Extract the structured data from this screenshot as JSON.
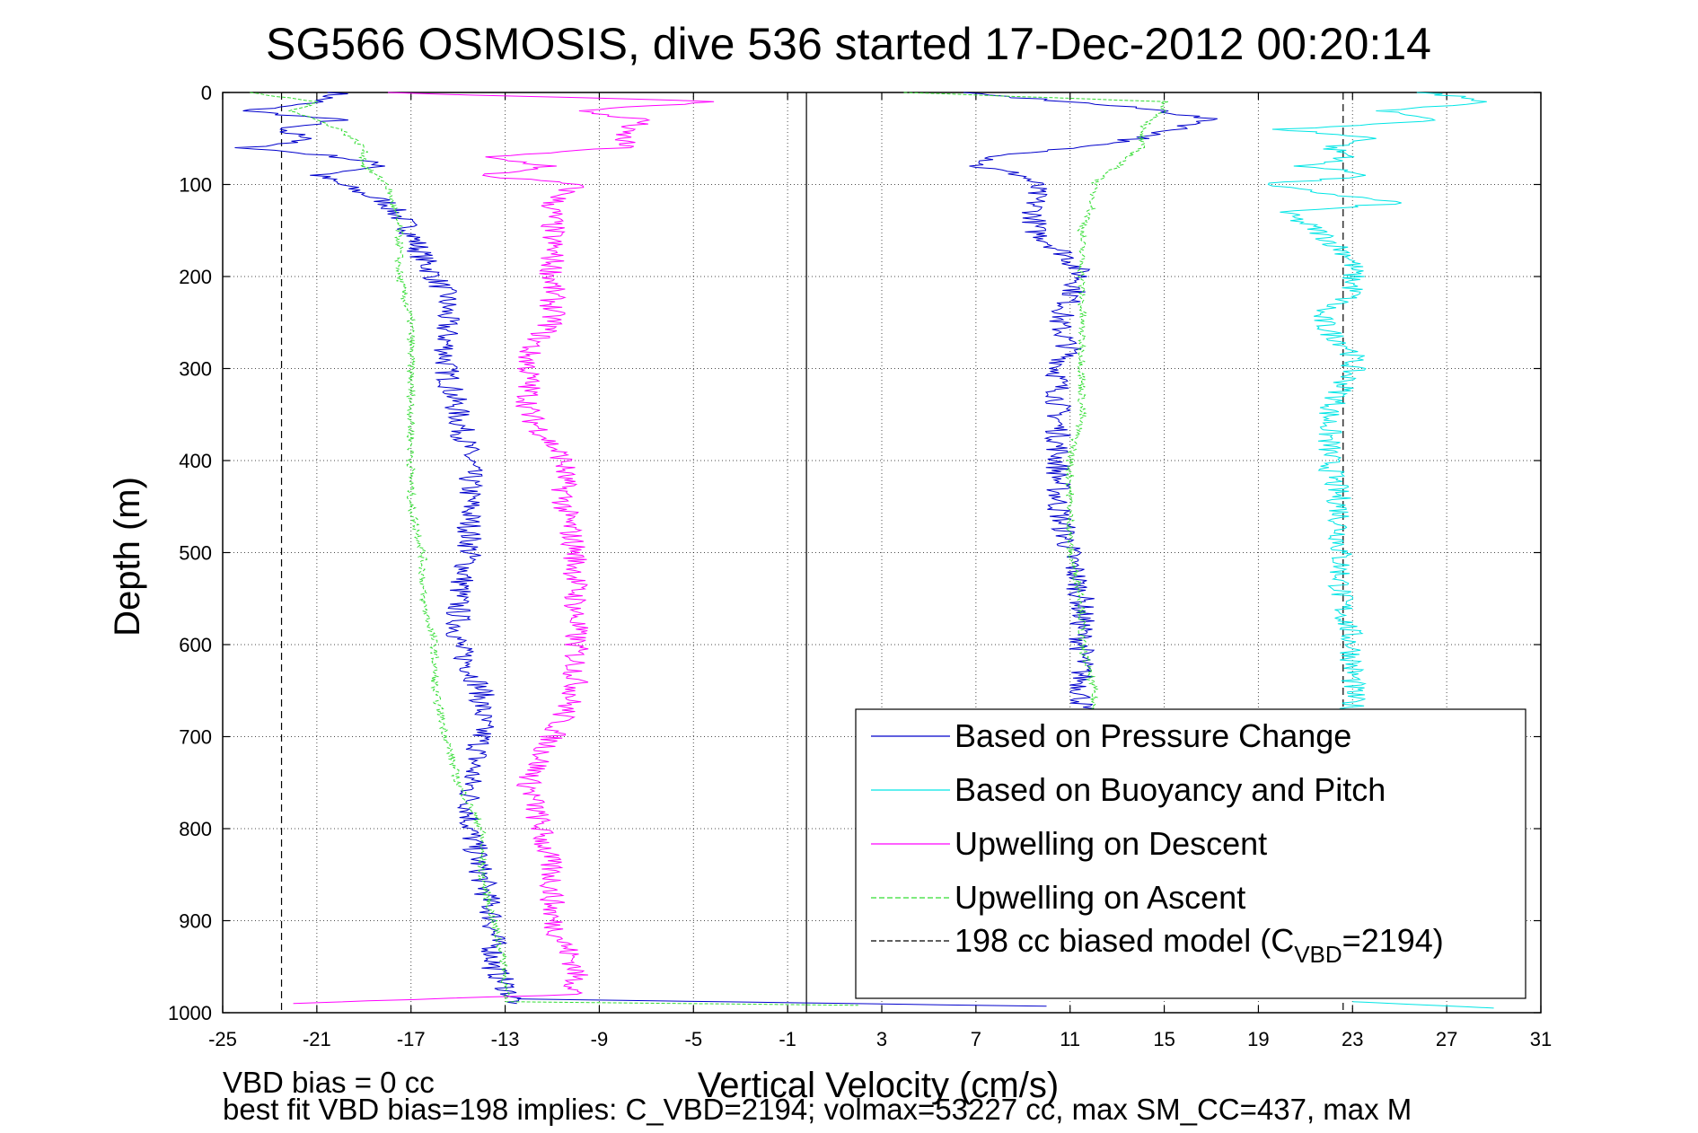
{
  "chart_data": {
    "type": "line",
    "title": "SG566 OSMOSIS, dive 536 started 17-Dec-2012 00:20:14",
    "xlabel": "Vertical Velocity (cm/s)",
    "ylabel": "Depth (m)",
    "xlim": [
      -25,
      31
    ],
    "ylim": [
      0,
      1000
    ],
    "y_reversed": true,
    "grid": true,
    "xticks": [
      -25,
      -21,
      -17,
      -13,
      -9,
      -5,
      -1,
      3,
      7,
      11,
      15,
      19,
      23,
      27,
      31
    ],
    "yticks": [
      0,
      100,
      200,
      300,
      400,
      500,
      600,
      700,
      800,
      900,
      1000
    ],
    "xtick_labels": [
      "-25",
      "-21",
      "-17",
      "-13",
      "-9",
      "-5",
      "-1",
      "3",
      "7",
      "11",
      "15",
      "19",
      "23",
      "27",
      "31"
    ],
    "ytick_labels": [
      "0",
      "100",
      "200",
      "300",
      "400",
      "500",
      "600",
      "700",
      "800",
      "900",
      "1000"
    ],
    "legend_position": "lower-right",
    "footnote_lines": [
      "VBD bias = 0 cc",
      "best fit VBD bias=198 implies: C_VBD=2194; volmax=53227 cc, max SM_CC=437, max M"
    ],
    "reference_lines": [
      {
        "kind": "model-descent",
        "x": -22.5,
        "style": "dashed",
        "color": "#000000"
      },
      {
        "kind": "zero",
        "x": -0.2,
        "style": "solid",
        "color": "#000000"
      },
      {
        "kind": "model-ascent",
        "x": 22.6,
        "style": "dashed",
        "color": "#000000"
      }
    ],
    "series": [
      {
        "name": "Based on Pressure Change",
        "color": "#0000cc",
        "style": "solid",
        "legend_label": "Based on Pressure Change",
        "segments": [
          {
            "depth": [
              0,
              10,
              20,
              30,
              40,
              50,
              60,
              70,
              80,
              90,
              100,
              120,
              150,
              180,
              200,
              220,
              250,
              280,
              300,
              350,
              400,
              450,
              500,
              550,
              600,
              650,
              700,
              750,
              800,
              850,
              900,
              950,
              990
            ],
            "velocity": [
              -20,
              -21,
              -24,
              -20,
              -23,
              -21,
              -24,
              -20,
              -18,
              -21,
              -20,
              -18,
              -17,
              -16.5,
              -16,
              -15.5,
              -15.5,
              -15.5,
              -15.5,
              -15,
              -14.5,
              -14.5,
              -14.5,
              -15,
              -15,
              -14,
              -14,
              -14.5,
              -14.5,
              -14,
              -13.5,
              -13.5,
              -12.5
            ]
          },
          {
            "depth": [
              0,
              10,
              20,
              30,
              50,
              70,
              80,
              90,
              100,
              120,
              150,
              180,
              200,
              250,
              280,
              300,
              350,
              400,
              450,
              500,
              550,
              600,
              650,
              680
            ],
            "velocity": [
              6,
              11,
              15,
              17,
              14,
              8,
              7,
              9,
              9.5,
              9.5,
              9.5,
              11,
              11.5,
              10.5,
              11,
              10.5,
              10.5,
              10.5,
              10.5,
              11,
              11.5,
              11.5,
              11.5,
              11.5
            ]
          },
          {
            "depth": [
              985,
              993
            ],
            "velocity": [
              -12.5,
              10
            ]
          }
        ]
      },
      {
        "name": "Based on Buoyancy and Pitch",
        "color": "#00e5e5",
        "style": "solid",
        "legend_label": "Based on Buoyancy and Pitch",
        "segments": [
          {
            "depth": [
              0,
              10,
              20,
              30,
              40,
              50,
              60,
              70,
              80,
              90,
              100,
              120,
              130,
              150,
              180,
              200,
              220,
              240,
              260,
              280,
              300,
              350,
              400,
              450,
              500,
              550,
              600,
              650,
              680
            ],
            "velocity": [
              26,
              29,
              24,
              27,
              20,
              24,
              22,
              23,
              21,
              24,
              19,
              25,
              20,
              21.5,
              23,
              23,
              23,
              21.5,
              22,
              23,
              23,
              22,
              22,
              22.5,
              22.5,
              22.5,
              23,
              23,
              23
            ]
          },
          {
            "depth": [
              988,
              995
            ],
            "velocity": [
              23,
              29
            ]
          }
        ]
      },
      {
        "name": "Upwelling on Descent",
        "color": "#ff00ff",
        "style": "solid",
        "legend_label": "Upwelling on Descent",
        "segments": [
          {
            "depth": [
              0,
              10,
              20,
              30,
              40,
              50,
              60,
              70,
              80,
              90,
              100,
              120,
              150,
              180,
              200,
              250,
              280,
              300,
              350,
              400,
              450,
              500,
              550,
              600,
              650,
              700,
              750,
              800,
              850,
              900,
              950,
              980,
              990
            ],
            "velocity": [
              -18,
              -4,
              -10,
              -7,
              -8,
              -8,
              -8,
              -14,
              -11,
              -14,
              -10,
              -11,
              -11,
              -11,
              -11,
              -11,
              -12,
              -12,
              -12,
              -10.5,
              -10.5,
              -10,
              -10,
              -10,
              -10,
              -11,
              -12,
              -11.5,
              -11,
              -11,
              -10,
              -10,
              -22
            ]
          }
        ]
      },
      {
        "name": "Upwelling on Ascent",
        "color": "#33dd33",
        "style": "dashed",
        "legend_label": "Upwelling on Ascent",
        "segments": [
          {
            "depth": [
              0,
              10,
              20,
              40,
              60,
              80,
              100,
              150,
              200,
              250,
              300,
              350,
              400,
              450,
              500,
              550,
              600,
              650,
              700,
              750,
              800,
              850,
              900,
              950,
              985
            ],
            "velocity": [
              -24,
              -21,
              -22,
              -20,
              -19,
              -19,
              -18,
              -17.5,
              -17.5,
              -17,
              -17,
              -17,
              -17,
              -17,
              -16.5,
              -16.5,
              -16,
              -16,
              -15.5,
              -15,
              -14,
              -14,
              -13.5,
              -13,
              -13
            ]
          },
          {
            "depth": [
              0,
              10,
              20,
              40,
              60,
              80,
              100,
              120,
              150,
              200,
              250,
              300,
              350,
              400,
              450,
              500,
              550,
              600,
              650,
              680
            ],
            "velocity": [
              4,
              15,
              15,
              14,
              14,
              13,
              12,
              12,
              11.5,
              11.5,
              11.5,
              11.5,
              11.5,
              11,
              11,
              11,
              11.5,
              11.5,
              12,
              12
            ]
          },
          {
            "depth": [
              988,
              992
            ],
            "velocity": [
              -13,
              2
            ]
          }
        ]
      }
    ],
    "legend_extra": {
      "label_prefix": "198 cc biased model (C",
      "label_sub": "VBD",
      "label_suffix": "=2194)",
      "style": "dashed",
      "color": "#000000"
    }
  }
}
